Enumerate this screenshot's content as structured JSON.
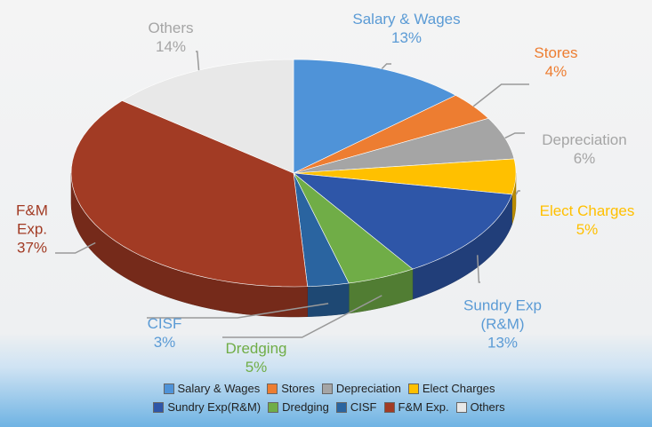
{
  "chart_data": {
    "type": "pie3d",
    "categories": [
      "Salary & Wages",
      "Stores",
      "Depreciation",
      "Elect Charges",
      "Sundry Exp(R&M)",
      "Dredging",
      "CISF",
      "F&M Exp.",
      "Others"
    ],
    "labels": [
      "Salary & Wages",
      "Stores",
      "Depreciation",
      "Elect Charges",
      "Sundry Exp (R&M)",
      "Dredging",
      "CISF",
      "F&M Exp.",
      "Others"
    ],
    "values": [
      13,
      4,
      6,
      5,
      13,
      5,
      3,
      37,
      14
    ],
    "value_labels": [
      "13%",
      "4%",
      "6%",
      "5%",
      "13%",
      "5%",
      "3%",
      "37%",
      "14%"
    ],
    "colors": [
      "#4f93d8",
      "#ed7d31",
      "#a5a5a5",
      "#ffc000",
      "#2e56a8",
      "#70ad47",
      "#2a64a0",
      "#a23b24",
      "#e8e8e8"
    ],
    "label_colors": [
      "#5b9bd5",
      "#ed7d31",
      "#a5a5a5",
      "#ffc000",
      "#5b9bd5",
      "#70ad47",
      "#5b9bd5",
      "#a23b24",
      "#a5a5a5"
    ],
    "legend": "bottom"
  }
}
